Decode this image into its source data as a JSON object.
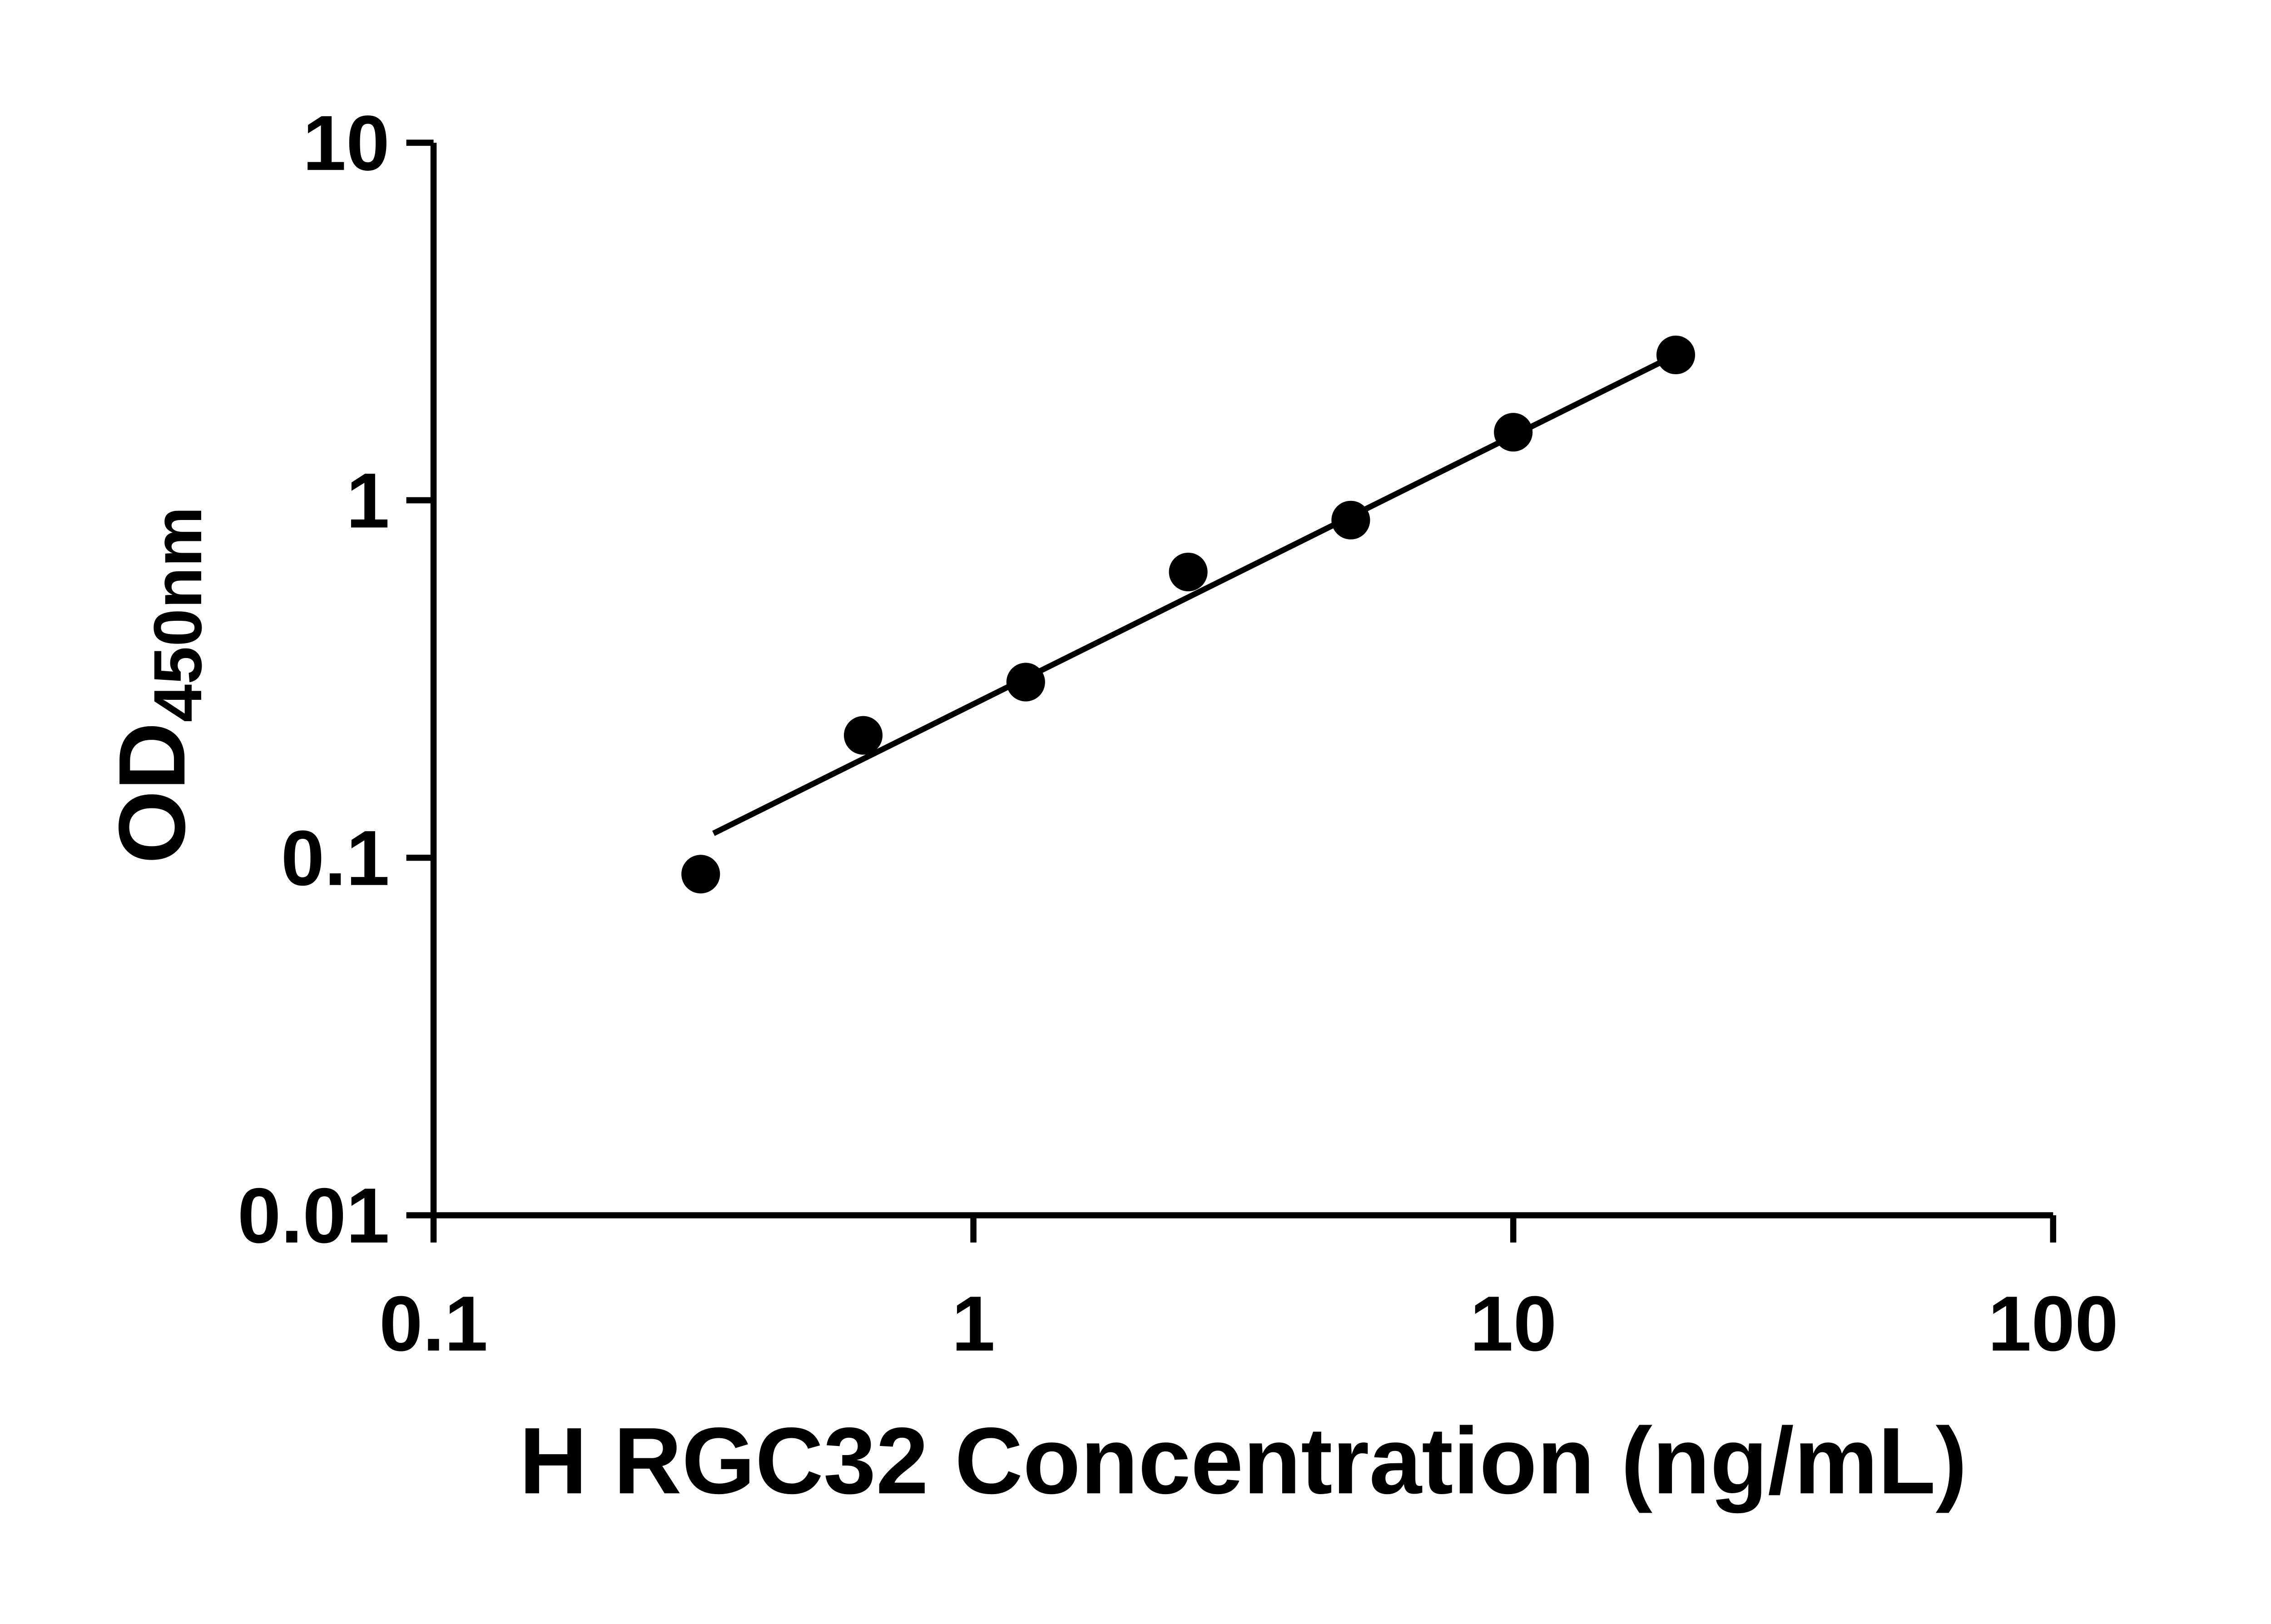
{
  "figure": {
    "background": "#ffffff"
  },
  "chart_data": {
    "type": "scatter",
    "title": "",
    "xlabel": "H RGC32 Concentration (ng/mL)",
    "ylabel_main": "OD",
    "ylabel_sub": "450nm",
    "x_scale": "log",
    "y_scale": "log",
    "xlim": [
      0.1,
      100
    ],
    "ylim": [
      0.01,
      10
    ],
    "x_ticks": [
      0.1,
      1,
      10,
      100
    ],
    "x_tick_labels": [
      "0.1",
      "1",
      "10",
      "100"
    ],
    "y_ticks": [
      0.01,
      0.1,
      1,
      10
    ],
    "y_tick_labels": [
      "0.01",
      "0.1",
      "1",
      "10"
    ],
    "grid": false,
    "legend": false,
    "marker_color": "#000000",
    "line_color": "#000000",
    "points": [
      {
        "x": 0.3125,
        "y": 0.09
      },
      {
        "x": 0.625,
        "y": 0.22
      },
      {
        "x": 1.25,
        "y": 0.31
      },
      {
        "x": 2.5,
        "y": 0.63
      },
      {
        "x": 5,
        "y": 0.88
      },
      {
        "x": 10,
        "y": 1.55
      },
      {
        "x": 20,
        "y": 2.55
      }
    ],
    "trendline": {
      "x1": 0.33,
      "y1": 0.117,
      "x2": 20.3,
      "y2": 2.58
    }
  }
}
